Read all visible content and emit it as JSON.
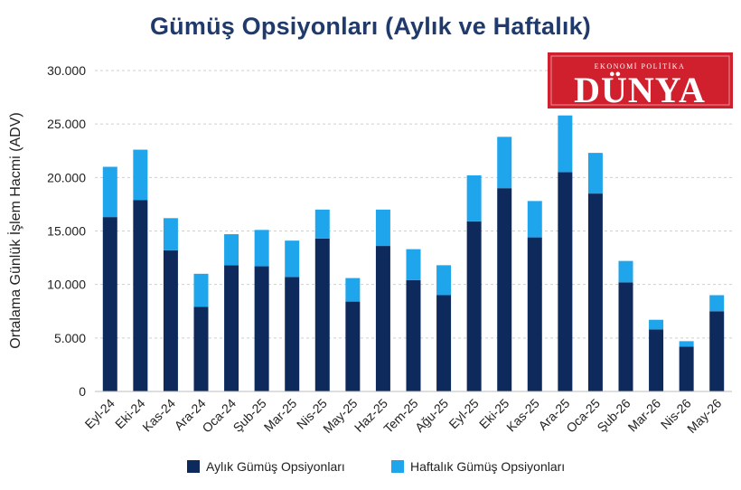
{
  "logo": {
    "top_text": "EKONOMİ  POLİTİKA",
    "main_text": "DÜNYA",
    "bg_color": "#d0202e",
    "text_color": "#ffffff"
  },
  "chart_data": {
    "type": "bar",
    "stacked": true,
    "title": "Gümüş Opsiyonları (Aylık ve Haftalık)",
    "xlabel": "",
    "ylabel": "Ortalama Günlük İşlem Hacmi (ADV)",
    "ylim": [
      0,
      30000
    ],
    "yticks": [
      0,
      5000,
      10000,
      15000,
      20000,
      25000,
      30000
    ],
    "ytick_labels": [
      "0",
      "5.000",
      "10.000",
      "15.000",
      "20.000",
      "25.000",
      "30.000"
    ],
    "grid": true,
    "legend_position": "bottom",
    "categories": [
      "Eyl-24",
      "Eki-24",
      "Kas-24",
      "Ara-24",
      "Oca-24",
      "Şub-25",
      "Mar-25",
      "Nis-25",
      "May-25",
      "Haz-25",
      "Tem-25",
      "Ağu-25",
      "Eyl-25",
      "Eki-25",
      "Kas-25",
      "Ara-25",
      "Oca-25",
      "Şub-26",
      "Mar-26",
      "Nis-26",
      "May-26"
    ],
    "series": [
      {
        "name": "Aylık Gümüş Opsiyonları",
        "color": "#0e2a5c",
        "values": [
          16300,
          17900,
          13200,
          7900,
          11800,
          11700,
          10700,
          14300,
          8400,
          13600,
          10400,
          9000,
          15900,
          19000,
          14400,
          20500,
          18500,
          10200,
          5800,
          4200,
          7500
        ]
      },
      {
        "name": "Haftalık Gümüş Opsiyonları",
        "color": "#1fa5ec",
        "values": [
          4700,
          4700,
          3000,
          3100,
          2900,
          3400,
          3400,
          2700,
          2200,
          3400,
          2900,
          2800,
          4300,
          4800,
          3400,
          5300,
          3800,
          2000,
          900,
          500,
          1500
        ]
      }
    ]
  }
}
